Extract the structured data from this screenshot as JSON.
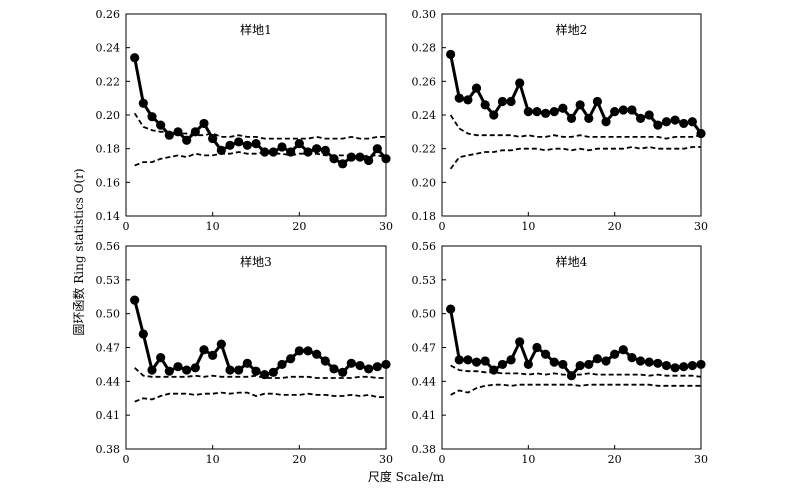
{
  "figure": {
    "ylabel": "圆环函数 Ring statistics O(r)",
    "xlabel": "尺度 Scale/m"
  },
  "chart_data": [
    {
      "type": "line",
      "title": "样地1",
      "xlim": [
        0,
        30
      ],
      "ylim": [
        0.14,
        0.26
      ],
      "x_ticks": [
        "0",
        "10",
        "20",
        "30"
      ],
      "y_ticks": [
        "0.14",
        "0.16",
        "0.18",
        "0.20",
        "0.22",
        "0.24",
        "0.26"
      ],
      "x": [
        1,
        2,
        3,
        4,
        5,
        6,
        7,
        8,
        9,
        10,
        11,
        12,
        13,
        14,
        15,
        16,
        17,
        18,
        19,
        20,
        21,
        22,
        23,
        24,
        25,
        26,
        27,
        28,
        29,
        30
      ],
      "series": [
        {
          "style": "observed",
          "values": [
            0.234,
            0.207,
            0.199,
            0.194,
            0.188,
            0.19,
            0.185,
            0.19,
            0.195,
            0.186,
            0.179,
            0.182,
            0.184,
            0.182,
            0.183,
            0.178,
            0.178,
            0.181,
            0.178,
            0.183,
            0.178,
            0.18,
            0.179,
            0.174,
            0.171,
            0.175,
            0.175,
            0.173,
            0.18,
            0.174
          ]
        },
        {
          "style": "upper-envelope",
          "values": [
            0.201,
            0.193,
            0.191,
            0.19,
            0.19,
            0.189,
            0.189,
            0.188,
            0.188,
            0.189,
            0.187,
            0.187,
            0.188,
            0.187,
            0.187,
            0.186,
            0.186,
            0.186,
            0.186,
            0.186,
            0.186,
            0.187,
            0.186,
            0.186,
            0.186,
            0.187,
            0.186,
            0.186,
            0.187,
            0.187
          ]
        },
        {
          "style": "lower-envelope",
          "values": [
            0.17,
            0.172,
            0.172,
            0.174,
            0.175,
            0.176,
            0.175,
            0.177,
            0.176,
            0.176,
            0.177,
            0.177,
            0.178,
            0.177,
            0.177,
            0.178,
            0.177,
            0.177,
            0.176,
            0.177,
            0.177,
            0.177,
            0.176,
            0.176,
            0.176,
            0.176,
            0.175,
            0.176,
            0.176,
            0.175
          ]
        }
      ]
    },
    {
      "type": "line",
      "title": "样地2",
      "xlim": [
        0,
        30
      ],
      "ylim": [
        0.18,
        0.3
      ],
      "x_ticks": [
        "0",
        "10",
        "20",
        "30"
      ],
      "y_ticks": [
        "0.18",
        "0.20",
        "0.22",
        "0.24",
        "0.26",
        "0.28",
        "0.30"
      ],
      "x": [
        1,
        2,
        3,
        4,
        5,
        6,
        7,
        8,
        9,
        10,
        11,
        12,
        13,
        14,
        15,
        16,
        17,
        18,
        19,
        20,
        21,
        22,
        23,
        24,
        25,
        26,
        27,
        28,
        29,
        30
      ],
      "series": [
        {
          "style": "observed",
          "values": [
            0.276,
            0.25,
            0.249,
            0.256,
            0.246,
            0.24,
            0.248,
            0.248,
            0.259,
            0.242,
            0.242,
            0.241,
            0.242,
            0.244,
            0.238,
            0.246,
            0.238,
            0.248,
            0.236,
            0.242,
            0.243,
            0.243,
            0.238,
            0.24,
            0.234,
            0.236,
            0.237,
            0.235,
            0.236,
            0.229
          ]
        },
        {
          "style": "upper-envelope",
          "values": [
            0.24,
            0.232,
            0.229,
            0.228,
            0.228,
            0.228,
            0.228,
            0.228,
            0.227,
            0.228,
            0.227,
            0.227,
            0.228,
            0.227,
            0.227,
            0.228,
            0.227,
            0.227,
            0.227,
            0.227,
            0.227,
            0.227,
            0.227,
            0.227,
            0.227,
            0.226,
            0.227,
            0.227,
            0.227,
            0.228
          ]
        },
        {
          "style": "lower-envelope",
          "values": [
            0.208,
            0.215,
            0.216,
            0.217,
            0.218,
            0.218,
            0.219,
            0.219,
            0.22,
            0.22,
            0.22,
            0.219,
            0.22,
            0.22,
            0.219,
            0.22,
            0.219,
            0.22,
            0.22,
            0.22,
            0.22,
            0.221,
            0.22,
            0.221,
            0.22,
            0.22,
            0.22,
            0.22,
            0.221,
            0.221
          ]
        }
      ]
    },
    {
      "type": "line",
      "title": "样地3",
      "xlim": [
        0,
        30
      ],
      "ylim": [
        0.38,
        0.56
      ],
      "x_ticks": [
        "0",
        "10",
        "20",
        "30"
      ],
      "y_ticks": [
        "0.38",
        "0.41",
        "0.44",
        "0.47",
        "0.50",
        "0.53",
        "0.56"
      ],
      "x": [
        1,
        2,
        3,
        4,
        5,
        6,
        7,
        8,
        9,
        10,
        11,
        12,
        13,
        14,
        15,
        16,
        17,
        18,
        19,
        20,
        21,
        22,
        23,
        24,
        25,
        26,
        27,
        28,
        29,
        30
      ],
      "series": [
        {
          "style": "observed",
          "values": [
            0.512,
            0.482,
            0.45,
            0.461,
            0.449,
            0.453,
            0.45,
            0.452,
            0.468,
            0.463,
            0.473,
            0.45,
            0.45,
            0.456,
            0.449,
            0.446,
            0.448,
            0.455,
            0.46,
            0.467,
            0.467,
            0.464,
            0.458,
            0.451,
            0.448,
            0.456,
            0.454,
            0.451,
            0.453,
            0.455
          ]
        },
        {
          "style": "upper-envelope",
          "values": [
            0.452,
            0.445,
            0.444,
            0.444,
            0.444,
            0.444,
            0.444,
            0.445,
            0.444,
            0.445,
            0.444,
            0.444,
            0.444,
            0.444,
            0.445,
            0.443,
            0.443,
            0.443,
            0.444,
            0.444,
            0.444,
            0.443,
            0.443,
            0.443,
            0.443,
            0.443,
            0.444,
            0.444,
            0.443,
            0.443
          ]
        },
        {
          "style": "lower-envelope",
          "values": [
            0.422,
            0.425,
            0.424,
            0.427,
            0.429,
            0.429,
            0.429,
            0.428,
            0.429,
            0.429,
            0.43,
            0.429,
            0.43,
            0.43,
            0.427,
            0.429,
            0.429,
            0.428,
            0.428,
            0.428,
            0.429,
            0.428,
            0.428,
            0.427,
            0.427,
            0.428,
            0.427,
            0.428,
            0.426,
            0.426
          ]
        }
      ]
    },
    {
      "type": "line",
      "title": "样地4",
      "xlim": [
        0,
        30
      ],
      "ylim": [
        0.38,
        0.56
      ],
      "x_ticks": [
        "0",
        "10",
        "20",
        "30"
      ],
      "y_ticks": [
        "0.38",
        "0.41",
        "0.44",
        "0.47",
        "0.50",
        "0.53",
        "0.56"
      ],
      "x": [
        1,
        2,
        3,
        4,
        5,
        6,
        7,
        8,
        9,
        10,
        11,
        12,
        13,
        14,
        15,
        16,
        17,
        18,
        19,
        20,
        21,
        22,
        23,
        24,
        25,
        26,
        27,
        28,
        29,
        30
      ],
      "series": [
        {
          "style": "observed",
          "values": [
            0.504,
            0.459,
            0.459,
            0.457,
            0.458,
            0.45,
            0.455,
            0.459,
            0.475,
            0.455,
            0.47,
            0.464,
            0.457,
            0.455,
            0.445,
            0.454,
            0.455,
            0.46,
            0.458,
            0.464,
            0.468,
            0.461,
            0.458,
            0.457,
            0.456,
            0.454,
            0.452,
            0.453,
            0.454,
            0.455
          ]
        },
        {
          "style": "upper-envelope",
          "values": [
            0.454,
            0.45,
            0.449,
            0.449,
            0.448,
            0.448,
            0.447,
            0.447,
            0.447,
            0.446,
            0.447,
            0.446,
            0.447,
            0.446,
            0.446,
            0.446,
            0.447,
            0.446,
            0.446,
            0.446,
            0.446,
            0.446,
            0.446,
            0.445,
            0.446,
            0.445,
            0.445,
            0.445,
            0.445,
            0.444
          ]
        },
        {
          "style": "lower-envelope",
          "values": [
            0.428,
            0.432,
            0.43,
            0.434,
            0.436,
            0.437,
            0.437,
            0.436,
            0.437,
            0.437,
            0.437,
            0.437,
            0.437,
            0.437,
            0.437,
            0.436,
            0.437,
            0.437,
            0.437,
            0.437,
            0.437,
            0.437,
            0.437,
            0.437,
            0.436,
            0.436,
            0.436,
            0.436,
            0.436,
            0.436
          ]
        }
      ]
    }
  ]
}
